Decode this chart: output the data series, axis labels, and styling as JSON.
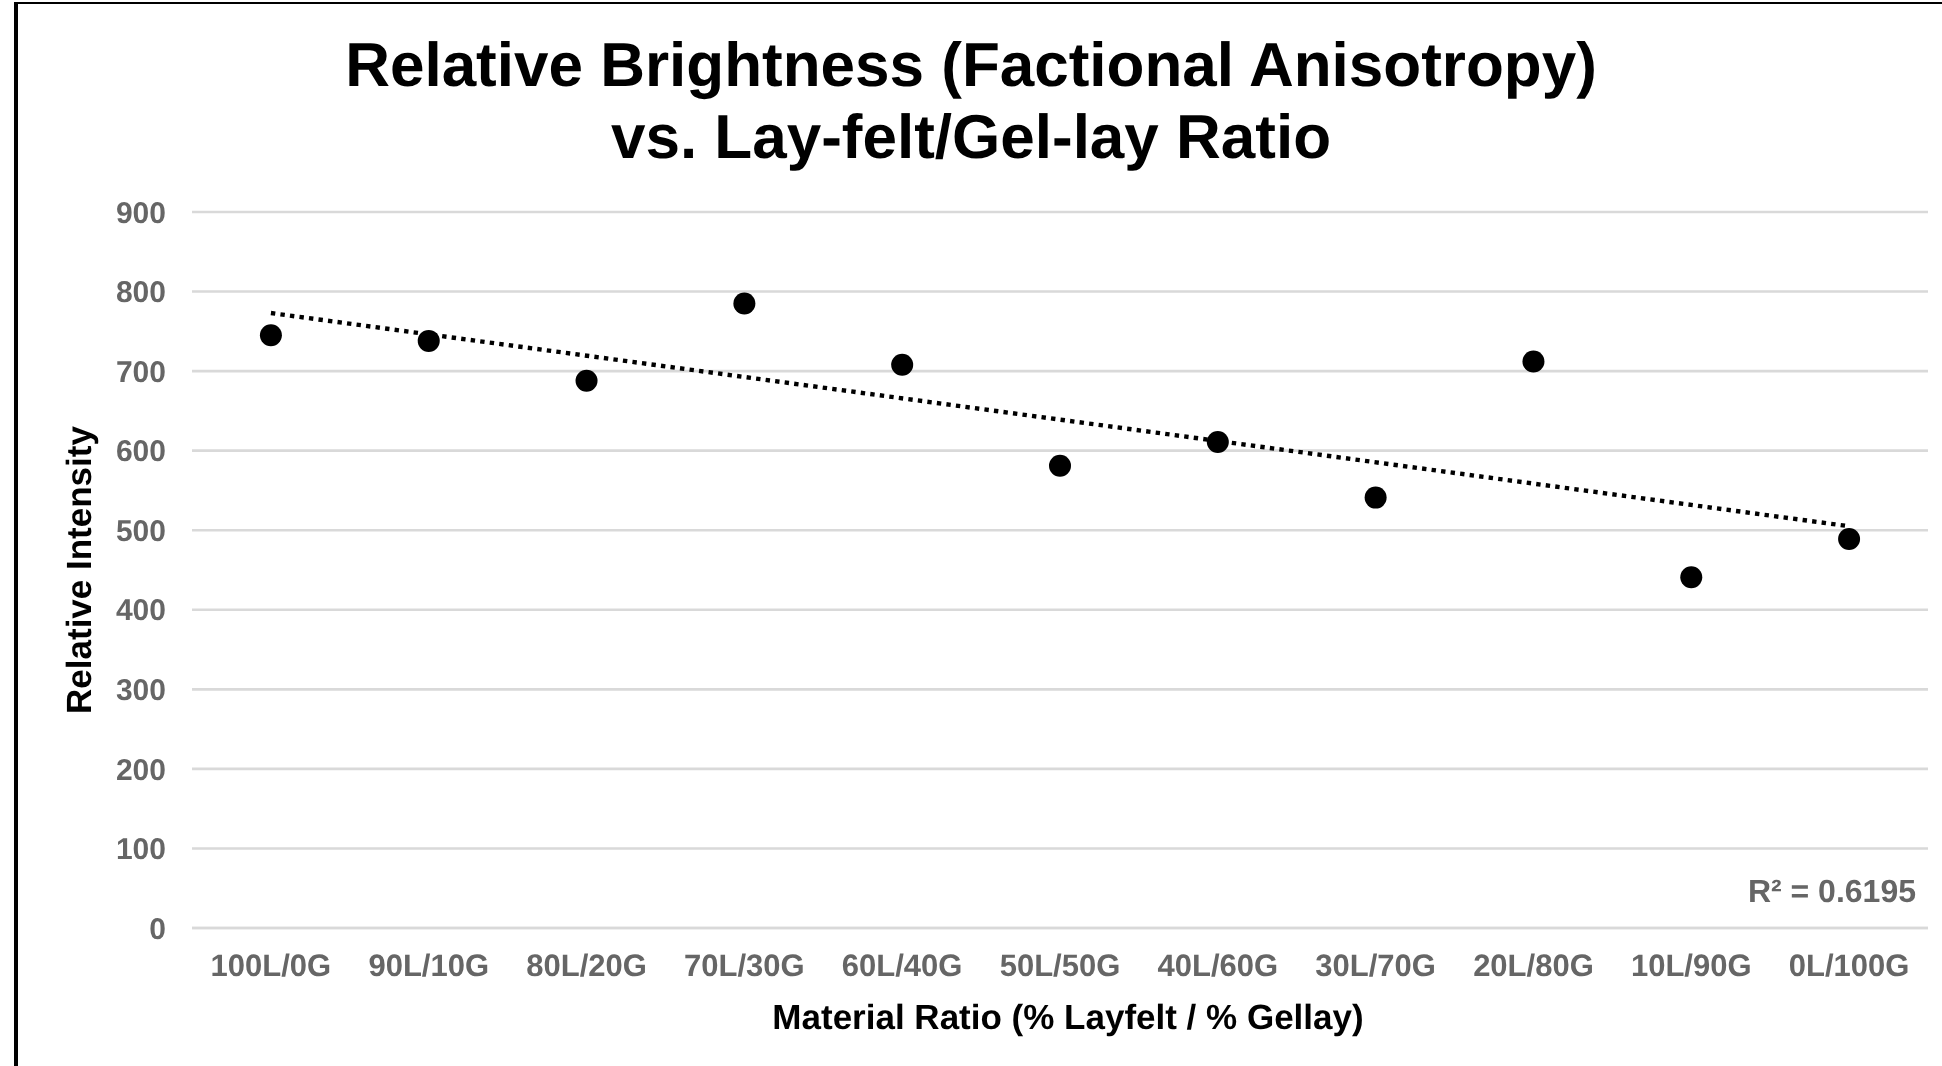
{
  "chart_data": {
    "type": "scatter",
    "title": "Relative Brightness (Factional Anisotropy)\nvs. Lay-felt/Gel-lay Ratio",
    "xlabel": "Material Ratio (% Layfelt / % Gellay)",
    "ylabel": "Relative Intensity",
    "categories": [
      "100L/0G",
      "90L/10G",
      "80L/20G",
      "70L/30G",
      "60L/40G",
      "50L/50G",
      "40L/60G",
      "30L/70G",
      "20L/80G",
      "10L/90G",
      "0L/100G"
    ],
    "series": [
      {
        "color": "#000000",
        "marker": "circle",
        "values": [
          745,
          738,
          688,
          785,
          708,
          581,
          611,
          541,
          712,
          441,
          489
        ]
      },
      {
        "type": "line",
        "color": "#000000",
        "line_style": "dotted",
        "marker": "none",
        "x": [
          "100L/0G",
          "0L/100G"
        ],
        "values": [
          773,
          505
        ]
      }
    ],
    "ylim": [
      0,
      900
    ],
    "yticks": [
      0,
      100,
      200,
      300,
      400,
      500,
      600,
      700,
      800,
      900
    ],
    "grid": "y",
    "annotations": [
      "R² = 0.6195"
    ]
  }
}
